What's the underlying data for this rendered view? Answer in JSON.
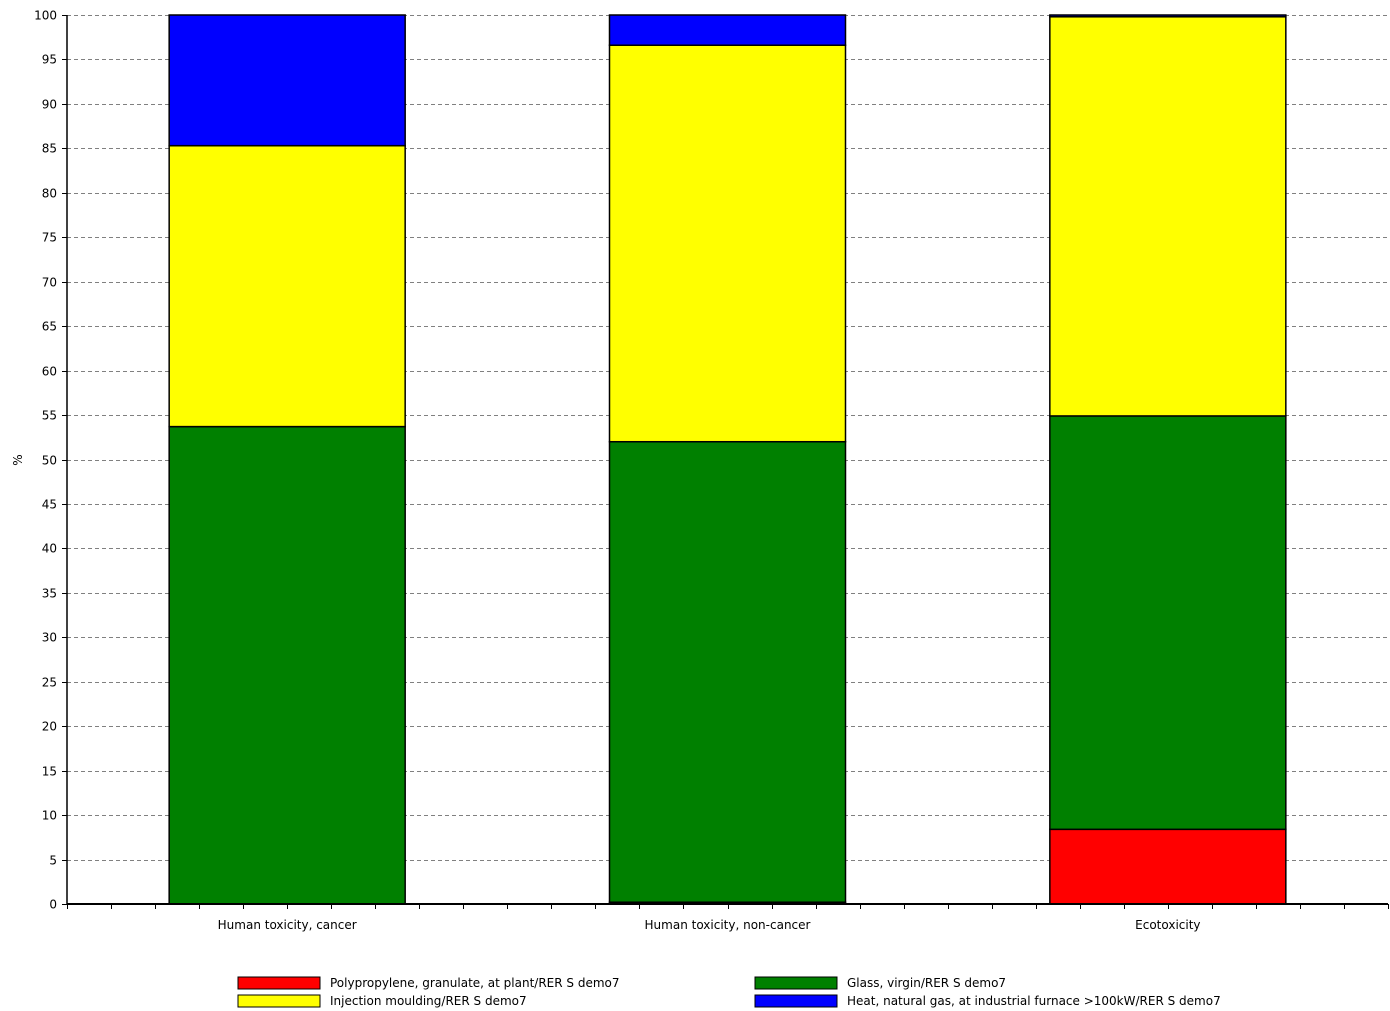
{
  "chart_data": {
    "type": "bar",
    "stacked": true,
    "categories": [
      "Human toxicity, cancer",
      "Human toxicity, non-cancer",
      "Ecotoxicity"
    ],
    "ylabel": "%",
    "xlabel": "",
    "ylim": [
      0,
      100
    ],
    "ytick_step": 5,
    "grid": true,
    "legend_position": "bottom",
    "series": [
      {
        "name": "Polypropylene, granulate, at plant/RER S demo7",
        "color": "#ff0000",
        "values": [
          0.0,
          0.2,
          8.4
        ]
      },
      {
        "name": "Glass, virgin/RER S demo7",
        "color": "#008000",
        "values": [
          53.7,
          51.8,
          46.5
        ]
      },
      {
        "name": "Injection moulding/RER S demo7",
        "color": "#ffff00",
        "values": [
          31.6,
          44.6,
          44.9
        ]
      },
      {
        "name": "Heat, natural gas, at industrial furnace >100kW/RER S demo7",
        "color": "#0000ff",
        "values": [
          14.7,
          3.4,
          0.2
        ]
      }
    ]
  }
}
